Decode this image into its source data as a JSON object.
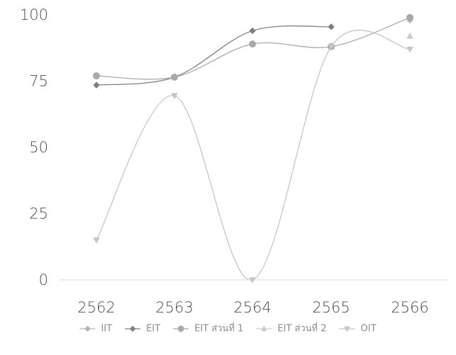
{
  "chart_data": {
    "type": "line",
    "title": "",
    "xlabel": "",
    "ylabel": "",
    "categories": [
      "2562",
      "2563",
      "2564",
      "2565",
      "2566"
    ],
    "y_ticks": [
      "0",
      "25",
      "50",
      "75",
      "100"
    ],
    "ylim": [
      0,
      100
    ],
    "grid": false,
    "legend_position": "bottom",
    "series": [
      {
        "name": "IIT",
        "color": "#b4b4b4",
        "marker": "diamond",
        "values": [
          null,
          null,
          null,
          null,
          98
        ]
      },
      {
        "name": "EIT",
        "color": "#7f7f7f",
        "marker": "diamond",
        "values": [
          73.5,
          76.5,
          94,
          95.5,
          null
        ]
      },
      {
        "name": "EIT ส่วนที่ 1",
        "color": "#a9a9a9",
        "marker": "circle",
        "values": [
          77,
          76.5,
          89,
          88,
          99
        ]
      },
      {
        "name": "EIT ส่วนที่ 2",
        "color": "#cbcbcb",
        "marker": "triangle",
        "values": [
          null,
          null,
          null,
          null,
          92
        ]
      },
      {
        "name": "OIT",
        "color": "#c6c6c6",
        "marker": "triangle-down",
        "values": [
          15,
          69.5,
          0,
          88,
          87
        ]
      }
    ]
  }
}
